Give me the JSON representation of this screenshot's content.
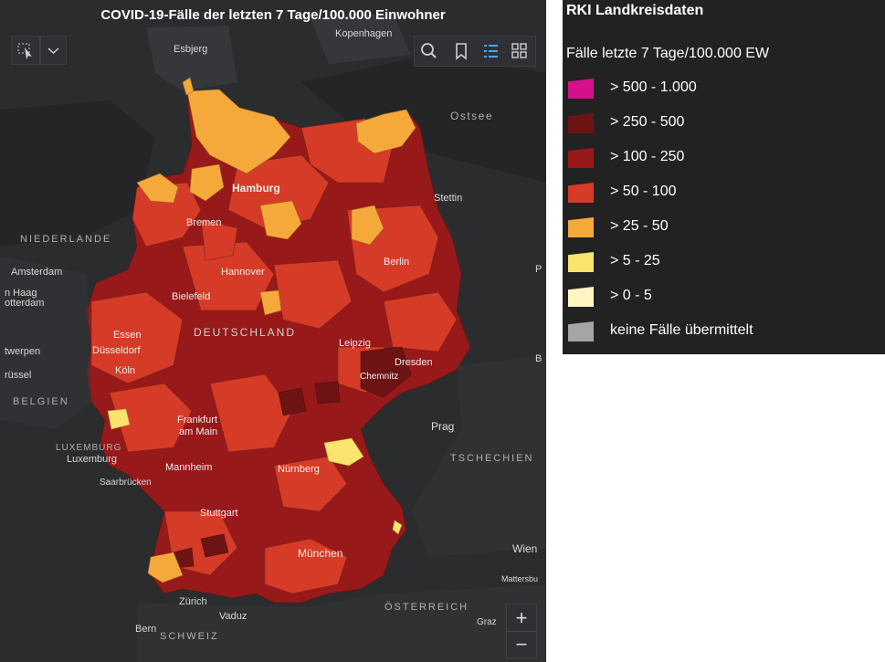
{
  "map": {
    "title": "COVID-19-Fälle der letzten 7 Tage/100.000 Einwohner",
    "labels": {
      "kopenhagen": "Kopenhagen",
      "esbjerg": "Esbjerg",
      "ostsee": "Ostsee",
      "hamburg": "Hamburg",
      "stettin": "Stettin",
      "bremen": "Bremen",
      "niederlande": "NIEDERLANDE",
      "amsterdam": "Amsterdam",
      "den_haag": "n Haag",
      "rotterdam": "otterdam",
      "hannover": "Hannover",
      "berlin": "Berlin",
      "bielefeld": "Bielefeld",
      "p_right": "P",
      "essen": "Essen",
      "deutschland": "DEUTSCHLAND",
      "duesseldorf": "Düsseldorf",
      "leipzig": "Leipzig",
      "antwerpen": "twerpen",
      "dresden": "Dresden",
      "b_right": "B",
      "koeln": "Köln",
      "bruessel": "rüssel",
      "chemnitz": "Chemnitz",
      "belgien": "BELGIEN",
      "frankfurt1": "Frankfurt",
      "frankfurt2": "am Main",
      "prag": "Prag",
      "luxemburg_country": "LUXEMBURG",
      "luxemburg_city": "Luxemburg",
      "tschechien": "TSCHECHIEN",
      "mannheim": "Mannheim",
      "nuernberg": "Nürnberg",
      "saarbruecken": "Saarbrücken",
      "stuttgart": "Stuttgart",
      "wien": "Wien",
      "muenchen": "München",
      "mattersburg": "Mattersbu",
      "zuerich": "Zürich",
      "oesterreich": "ÖSTERREICH",
      "vaduz": "Vaduz",
      "graz": "Graz",
      "bern": "Bern",
      "schweiz": "SCHWEIZ"
    },
    "zoom": {
      "in": "+",
      "out": "−"
    },
    "toolbar_icons": [
      "select-icon",
      "chevron-down-icon",
      "search-icon",
      "bookmark-icon",
      "legend-list-icon",
      "basemap-gallery-icon"
    ]
  },
  "legend": {
    "title": "RKI Landkreisdaten",
    "subtitle": "Fälle letzte 7 Tage/100.000 EW",
    "items": [
      {
        "label": "> 500 - 1.000",
        "color": "#d6108a"
      },
      {
        "label": "> 250 - 500",
        "color": "#6e1314"
      },
      {
        "label": "> 100 - 250",
        "color": "#981919"
      },
      {
        "label": "> 50 - 100",
        "color": "#d63b27"
      },
      {
        "label": "> 25 - 50",
        "color": "#f6a93b"
      },
      {
        "label": "> 5 - 25",
        "color": "#fbe46e"
      },
      {
        "label": "> 0 - 5",
        "color": "#fdf5c2"
      },
      {
        "label": "keine Fälle übermittelt",
        "color": "#a5a5a5"
      }
    ]
  },
  "colors": {
    "background": "#2b2c2e",
    "water": "#212325",
    "land": "#3a3b3d",
    "district_high": "#981919",
    "district_mid": "#d63b27",
    "district_low": "#f6a93b",
    "district_very_high": "#6e1314",
    "district_yellow": "#fbe46e"
  }
}
